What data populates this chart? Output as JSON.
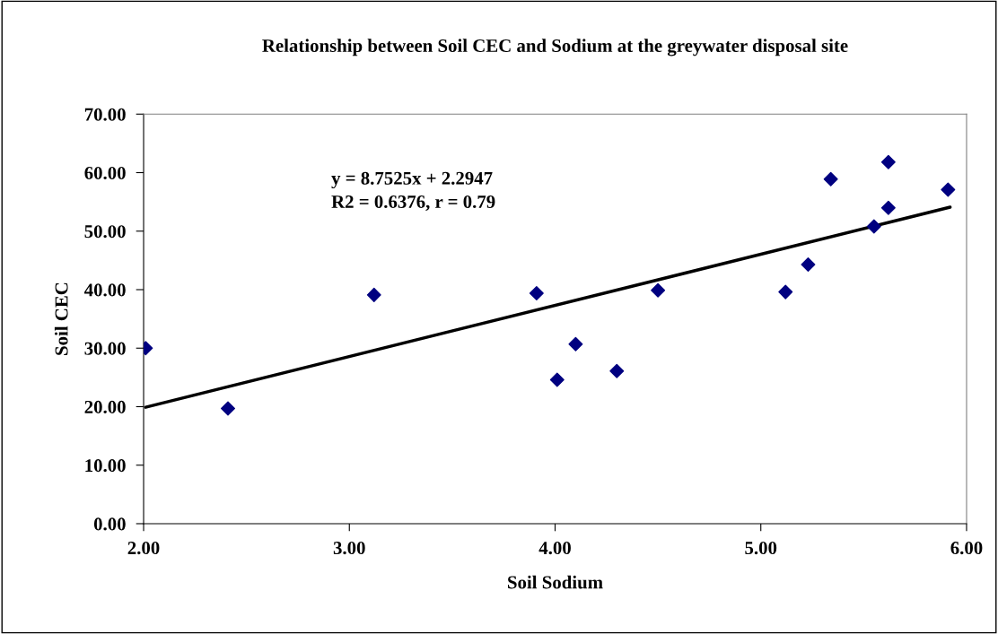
{
  "chart_data": {
    "type": "scatter",
    "title": "Relationship between Soil CEC and Sodium at the greywater disposal site",
    "xlabel": "Soil Sodium",
    "ylabel": "Soil CEC",
    "annotations": [
      "y = 8.7525x + 2.2947\nR2 = 0.6376, r = 0.79"
    ],
    "grid": false,
    "legend": false,
    "series": [
      {
        "marker": "diamond",
        "color": "#000080",
        "x": [
          2.01,
          2.41,
          3.12,
          3.91,
          4.01,
          4.1,
          4.3,
          4.5,
          5.12,
          5.23,
          5.34,
          5.55,
          5.62,
          5.62,
          5.91
        ],
        "values": [
          30.0,
          19.7,
          39.1,
          39.4,
          24.6,
          30.7,
          26.1,
          39.9,
          39.6,
          44.3,
          58.9,
          50.8,
          54.0,
          61.8,
          57.1
        ]
      },
      {
        "type": "line",
        "marker": "none",
        "color": "#000000",
        "x": [
          2.01,
          5.92
        ],
        "values": [
          19.9,
          54.1
        ]
      }
    ],
    "xlim": [
      2,
      6
    ],
    "ylim": [
      0,
      70
    ],
    "xticks": [
      {
        "value": 2,
        "label": "2.00"
      },
      {
        "value": 3,
        "label": "3.00"
      },
      {
        "value": 4,
        "label": "4.00"
      },
      {
        "value": 5,
        "label": "5.00"
      },
      {
        "value": 6,
        "label": "6.00"
      }
    ],
    "yticks": [
      {
        "value": 0,
        "label": "0.00"
      },
      {
        "value": 10,
        "label": "10.00"
      },
      {
        "value": 20,
        "label": "20.00"
      },
      {
        "value": 30,
        "label": "30.00"
      },
      {
        "value": 40,
        "label": "40.00"
      },
      {
        "value": 50,
        "label": "50.00"
      },
      {
        "value": 60,
        "label": "60.00"
      },
      {
        "value": 70,
        "label": "70.00"
      }
    ]
  }
}
